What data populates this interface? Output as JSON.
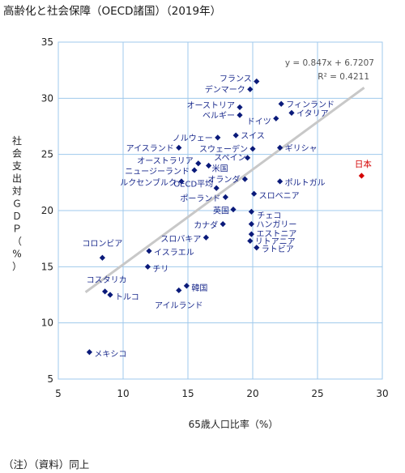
{
  "title": "高齢化と社会保障（OECD諸国）（2019年）",
  "footnote": "（注）（資料）同上",
  "chart_data": {
    "type": "scatter",
    "xlabel": "65歳人口比率（%）",
    "ylabel": "社会支出対ＧＤＰ（%）",
    "xlim": [
      5,
      30
    ],
    "ylim": [
      5,
      35
    ],
    "xticks": [
      5,
      10,
      15,
      20,
      25,
      30
    ],
    "yticks": [
      5,
      10,
      15,
      20,
      25,
      30,
      35
    ],
    "grid": true,
    "marker_color": "#0a1a7a",
    "highlight_color": "#d40000",
    "trendline": {
      "slope": 0.847,
      "intercept": 6.7207,
      "x_range": [
        7.1,
        28.6
      ],
      "equation": "y = 0.847x + 6.7207",
      "r2": "R² = 0.4211",
      "color": "#c8c8c8"
    },
    "points": [
      {
        "label": "フランス",
        "x": 20.3,
        "y": 31.5
      },
      {
        "label": "デンマーク",
        "x": 19.8,
        "y": 30.8
      },
      {
        "label": "オーストリア",
        "x": 19.0,
        "y": 29.2
      },
      {
        "label": "フィンランド",
        "x": 22.2,
        "y": 29.5
      },
      {
        "label": "イタリア",
        "x": 23.0,
        "y": 28.7
      },
      {
        "label": "ベルギー",
        "x": 19.0,
        "y": 28.5
      },
      {
        "label": "ドイツ",
        "x": 21.8,
        "y": 28.2
      },
      {
        "label": "ノルウェー",
        "x": 17.3,
        "y": 26.5
      },
      {
        "label": "スイス",
        "x": 18.7,
        "y": 26.7
      },
      {
        "label": "アイスランド",
        "x": 14.3,
        "y": 25.6
      },
      {
        "label": "スウェーデン",
        "x": 20.0,
        "y": 25.5
      },
      {
        "label": "ギリシャ",
        "x": 22.1,
        "y": 25.6
      },
      {
        "label": "オーストラリア",
        "x": 15.8,
        "y": 24.2
      },
      {
        "label": "スペイン",
        "x": 19.6,
        "y": 24.7
      },
      {
        "label": "米国",
        "x": 16.6,
        "y": 24.0
      },
      {
        "label": "ニュージーランド",
        "x": 15.5,
        "y": 23.6
      },
      {
        "label": "日本",
        "x": 28.4,
        "y": 23.1,
        "highlight": true
      },
      {
        "label": "オランダ",
        "x": 19.4,
        "y": 22.8
      },
      {
        "label": "ルクセンブルク",
        "x": 14.5,
        "y": 22.6
      },
      {
        "label": "ポルトガル",
        "x": 22.1,
        "y": 22.6
      },
      {
        "label": "OECD平均",
        "x": 17.2,
        "y": 22.0
      },
      {
        "label": "スロベニア",
        "x": 20.1,
        "y": 21.5
      },
      {
        "label": "ポーランド",
        "x": 17.9,
        "y": 21.2
      },
      {
        "label": "英国",
        "x": 18.5,
        "y": 20.1
      },
      {
        "label": "チェコ",
        "x": 19.9,
        "y": 19.9
      },
      {
        "label": "カナダ",
        "x": 17.7,
        "y": 18.8
      },
      {
        "label": "ハンガリー",
        "x": 19.9,
        "y": 18.8
      },
      {
        "label": "スロバキア",
        "x": 16.4,
        "y": 17.6
      },
      {
        "label": "エストニア",
        "x": 19.9,
        "y": 17.9
      },
      {
        "label": "リトアニア",
        "x": 19.8,
        "y": 17.3
      },
      {
        "label": "ラトビア",
        "x": 20.3,
        "y": 16.7
      },
      {
        "label": "コロンビア",
        "x": 8.4,
        "y": 15.8
      },
      {
        "label": "イスラエル",
        "x": 12.0,
        "y": 16.4
      },
      {
        "label": "チリ",
        "x": 11.9,
        "y": 15.0
      },
      {
        "label": "コスタリカ",
        "x": 8.6,
        "y": 12.8
      },
      {
        "label": "トルコ",
        "x": 9.0,
        "y": 12.5
      },
      {
        "label": "韓国",
        "x": 14.9,
        "y": 13.3
      },
      {
        "label": "アイルランド",
        "x": 14.3,
        "y": 12.9
      },
      {
        "label": "メキシコ",
        "x": 7.4,
        "y": 7.4
      }
    ]
  }
}
